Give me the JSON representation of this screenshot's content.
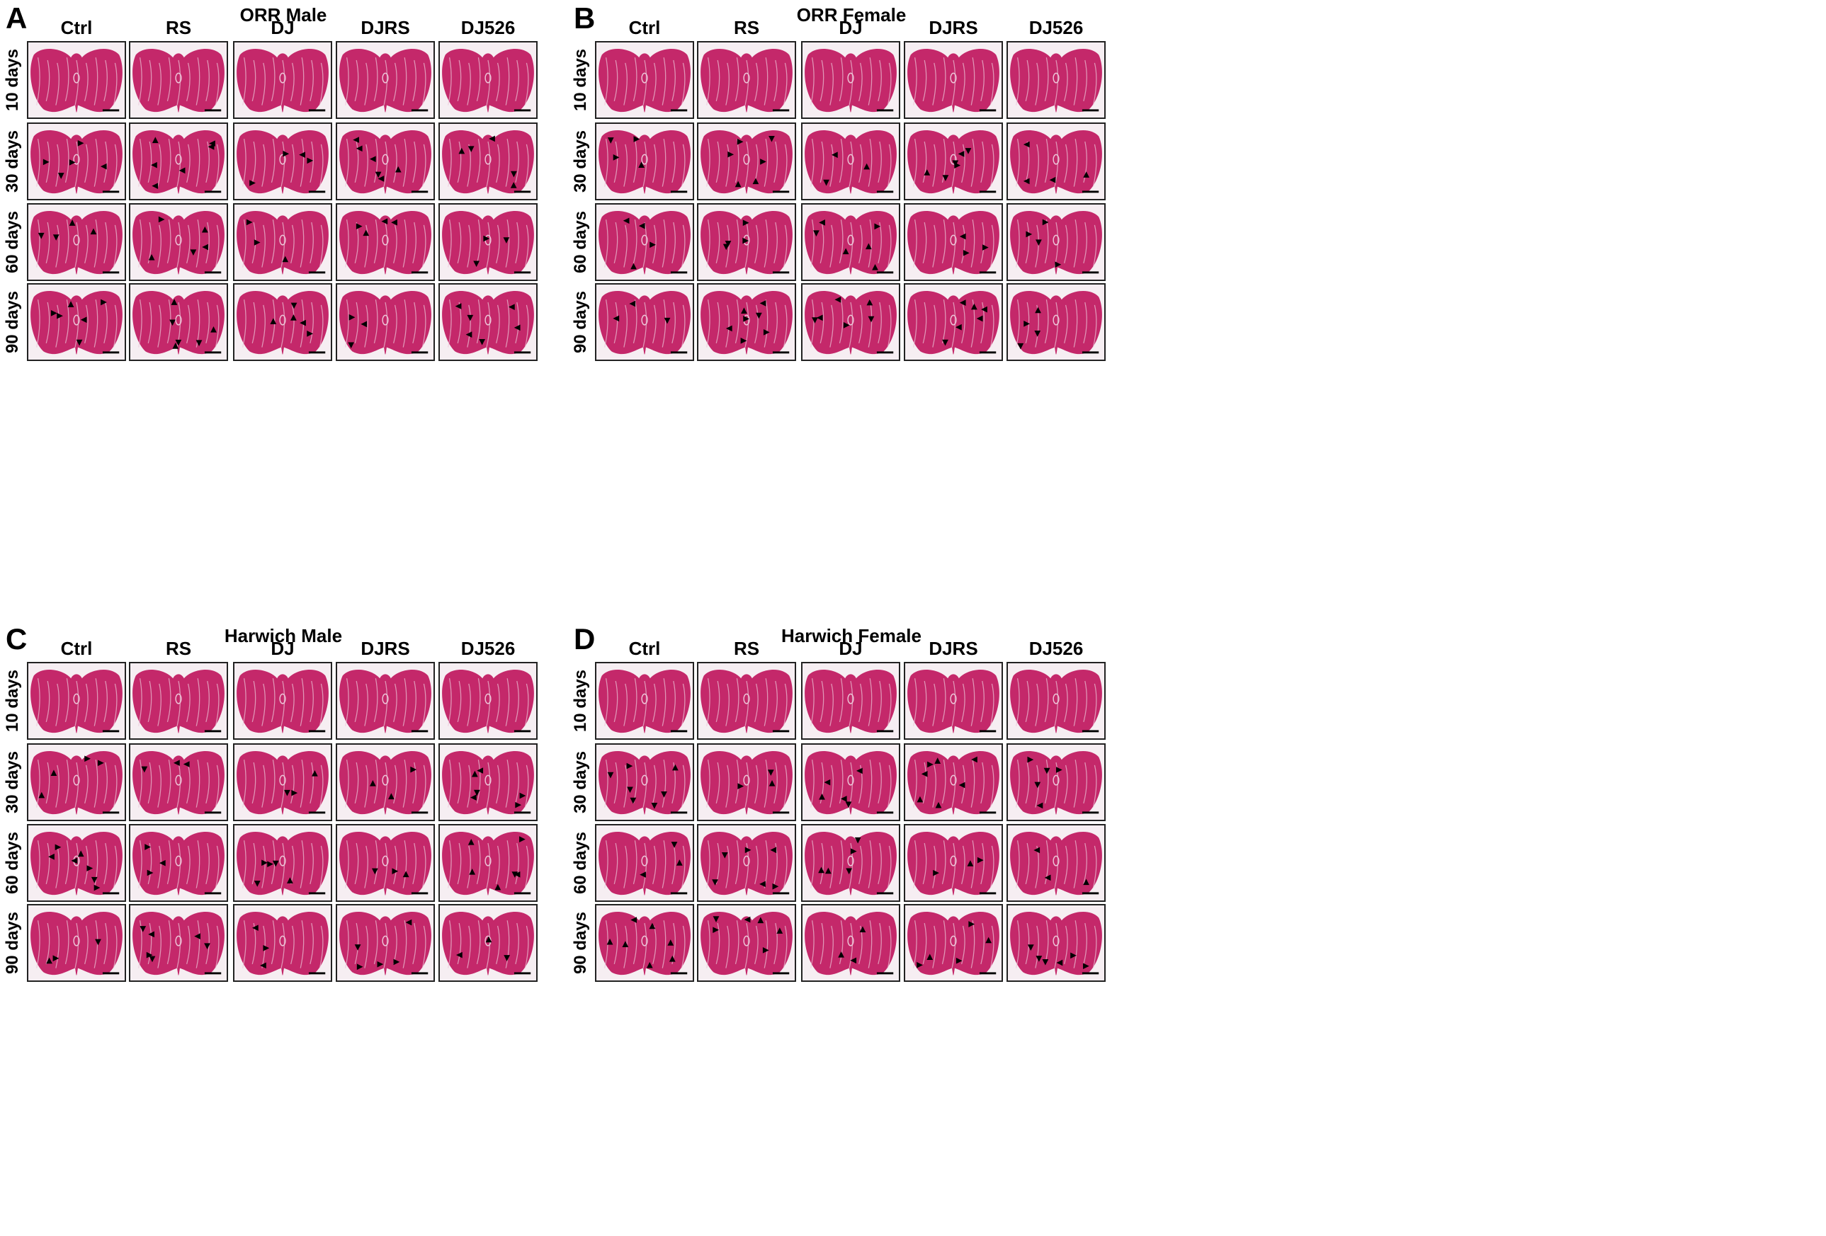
{
  "colors": {
    "tissue": "#c4286a",
    "tissue_dark": "#a31f57",
    "striation": "#ecc6d8",
    "background": "#f6eef2",
    "arrowhead": "#000000",
    "scale_bar": "#000000"
  },
  "icons": {
    "arrowhead": "triangle-arrowhead-icon",
    "scale_bar": "scale-bar-icon"
  },
  "columns": [
    "Ctrl",
    "RS",
    "DJ",
    "DJRS",
    "DJ526"
  ],
  "rows": [
    "10 days",
    "30 days",
    "60 days",
    "90 days"
  ],
  "panels": [
    {
      "letter": "A",
      "title": "ORR Male"
    },
    {
      "letter": "B",
      "title": "ORR Female"
    },
    {
      "letter": "C",
      "title": "Harwich Male"
    },
    {
      "letter": "D",
      "title": "Harwich Female"
    }
  ]
}
